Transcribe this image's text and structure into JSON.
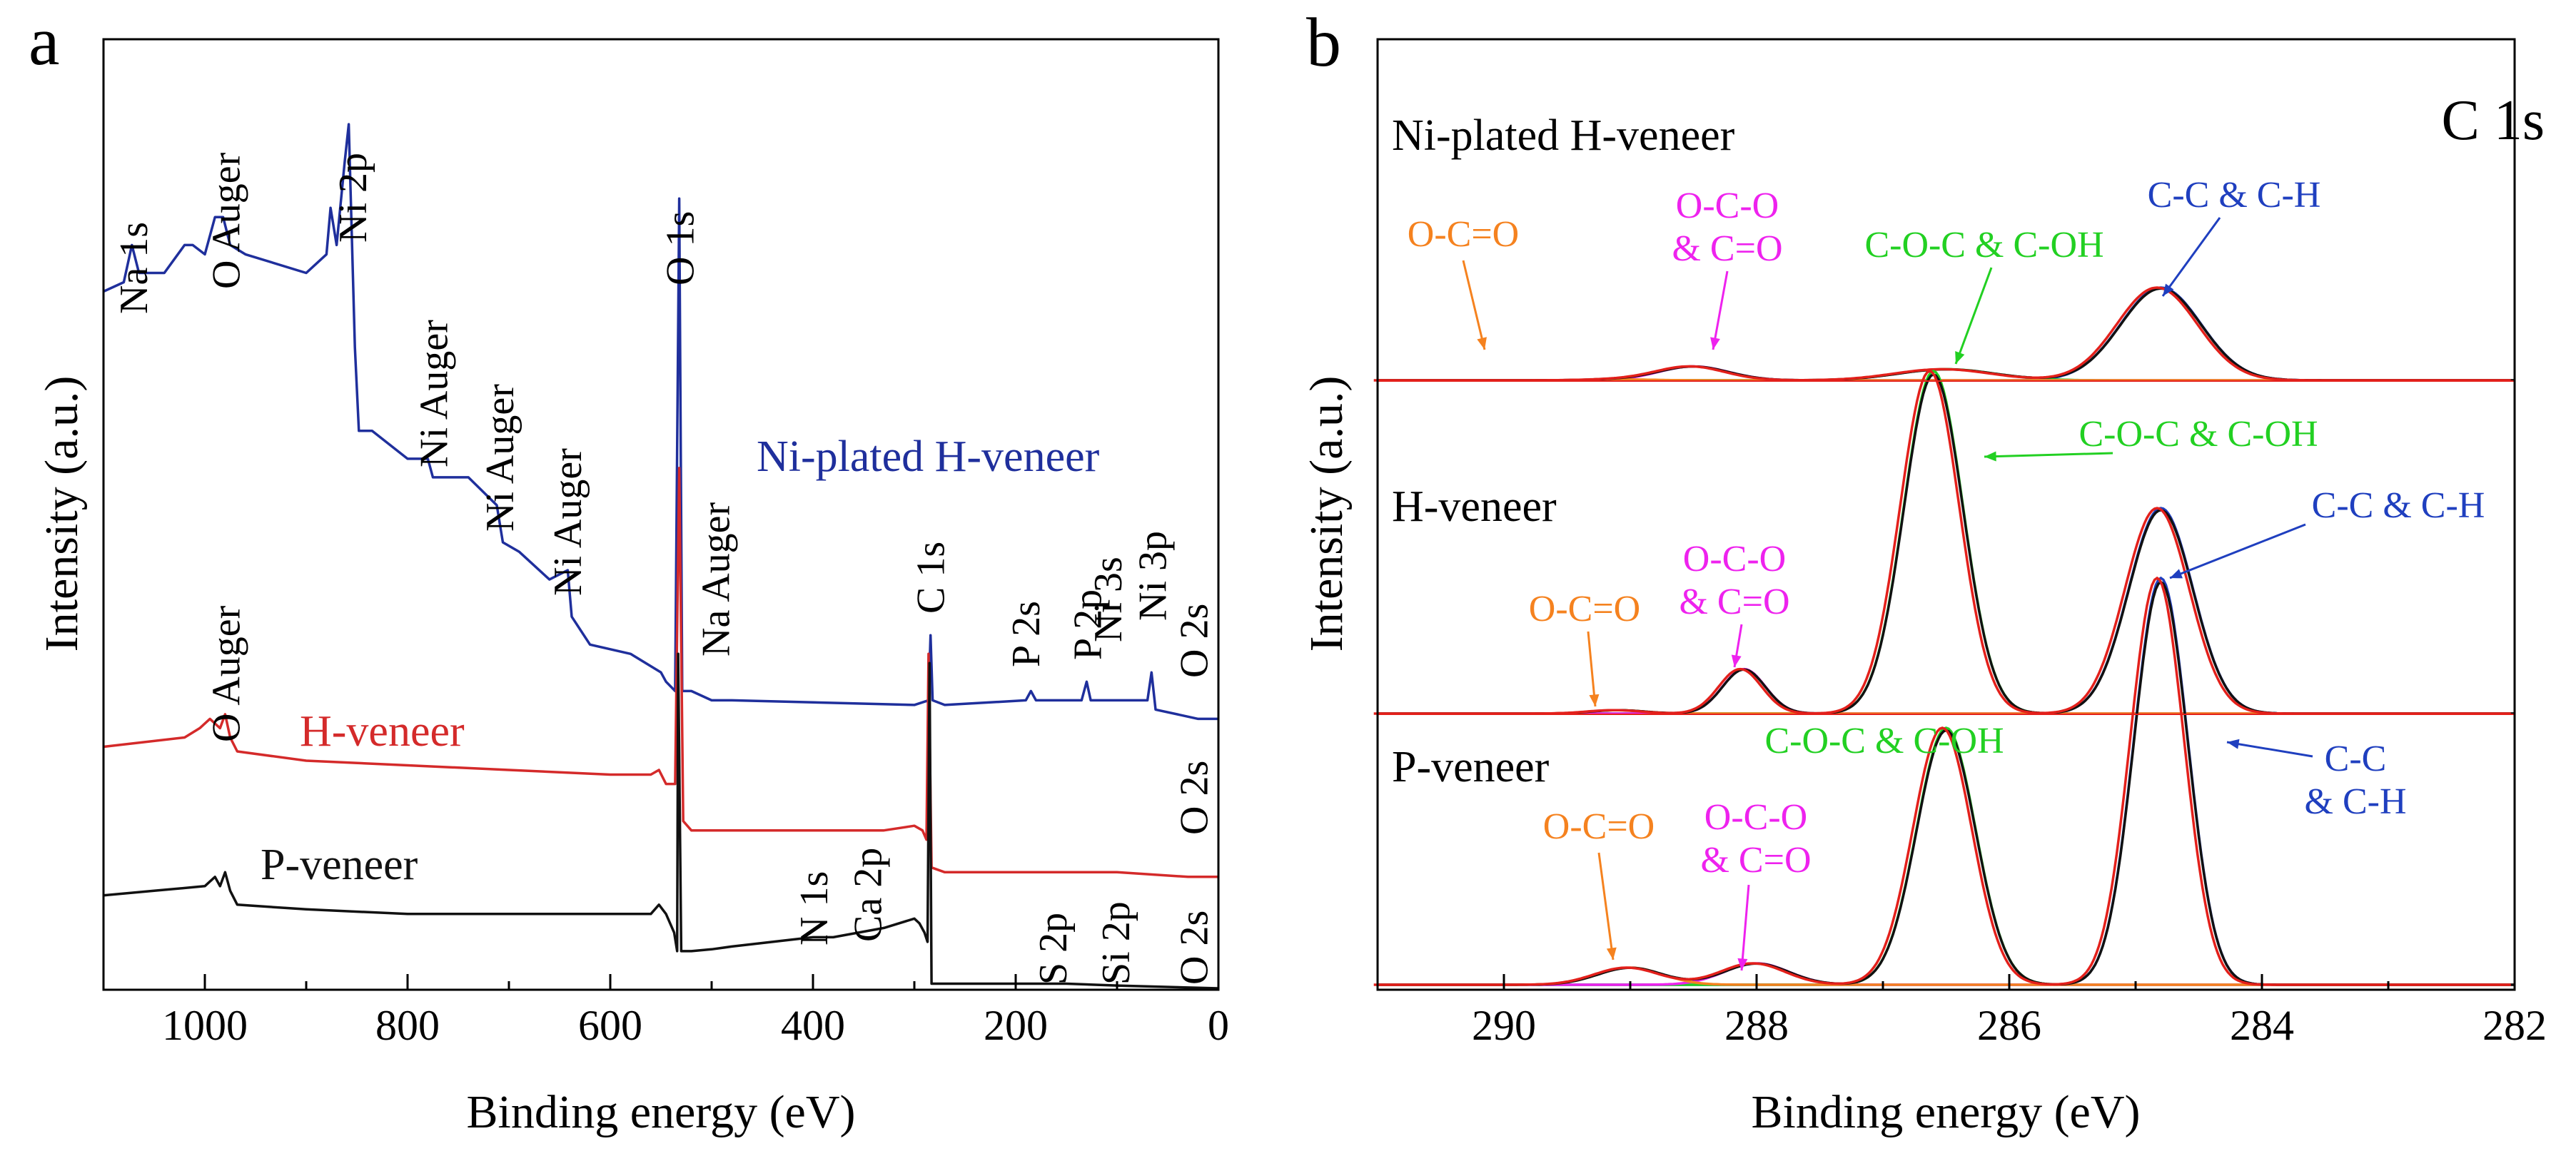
{
  "colors": {
    "ni_series": "#1f2f9c",
    "h_series": "#d42a2a",
    "p_series": "#111111",
    "fit_red": "#e3201b",
    "fit_blue": "#1f3fbf",
    "fit_green": "#22d022",
    "fit_magenta": "#ee22ee",
    "fit_orange": "#f5821f",
    "axis": "#000000"
  },
  "chart_data": [
    {
      "type": "line",
      "panel_label": "a",
      "xlabel": "Binding energy (eV)",
      "ylabel": "Intensity (a.u.)",
      "xlim": [
        1100,
        0
      ],
      "x_reversed": true,
      "xticks": [
        1000,
        800,
        600,
        400,
        200,
        0
      ],
      "ylim": [
        0,
        100
      ],
      "yticks_shown": false,
      "grid": false,
      "series": [
        {
          "name": "Ni-plated H-veneer",
          "color": "#1f2f9c",
          "points": [
            [
              1100,
              75
            ],
            [
              1080,
              76
            ],
            [
              1072,
              80
            ],
            [
              1065,
              77
            ],
            [
              1040,
              77
            ],
            [
              1020,
              80
            ],
            [
              1012,
              80
            ],
            [
              1000,
              79
            ],
            [
              990,
              83
            ],
            [
              982,
              83
            ],
            [
              975,
              80
            ],
            [
              960,
              79
            ],
            [
              900,
              77
            ],
            [
              880,
              79
            ],
            [
              876,
              84
            ],
            [
              870,
              80
            ],
            [
              862,
              89
            ],
            [
              858,
              93
            ],
            [
              855,
              81
            ],
            [
              852,
              69
            ],
            [
              848,
              60
            ],
            [
              835,
              60
            ],
            [
              800,
              57
            ],
            [
              780,
              57
            ],
            [
              775,
              55
            ],
            [
              740,
              55
            ],
            [
              712,
              52
            ],
            [
              706,
              48
            ],
            [
              690,
              47
            ],
            [
              660,
              44
            ],
            [
              642,
              45
            ],
            [
              638,
              40
            ],
            [
              620,
              37
            ],
            [
              580,
              36
            ],
            [
              550,
              34
            ],
            [
              545,
              33
            ],
            [
              536,
              32
            ],
            [
              532,
              85
            ],
            [
              529,
              32
            ],
            [
              520,
              32
            ],
            [
              500,
              31
            ],
            [
              480,
              31
            ],
            [
              300,
              30.5
            ],
            [
              286,
              31
            ],
            [
              284,
              38
            ],
            [
              282,
              31
            ],
            [
              270,
              30.5
            ],
            [
              190,
              31
            ],
            [
              185,
              32
            ],
            [
              180,
              31
            ],
            [
              135,
              31
            ],
            [
              130,
              33
            ],
            [
              126,
              31
            ],
            [
              70,
              31
            ],
            [
              66,
              34
            ],
            [
              62,
              30
            ],
            [
              20,
              29
            ],
            [
              0,
              29
            ]
          ]
        },
        {
          "name": "H-veneer",
          "color": "#d42a2a",
          "points": [
            [
              1100,
              26
            ],
            [
              1020,
              27
            ],
            [
              1005,
              28
            ],
            [
              995,
              29
            ],
            [
              985,
              28
            ],
            [
              980,
              29.5
            ],
            [
              975,
              27
            ],
            [
              968,
              25.5
            ],
            [
              900,
              24.5
            ],
            [
              800,
              24
            ],
            [
              700,
              23.5
            ],
            [
              600,
              23
            ],
            [
              560,
              23
            ],
            [
              552,
              23.5
            ],
            [
              545,
              22
            ],
            [
              536,
              22
            ],
            [
              532,
              56
            ],
            [
              528,
              18
            ],
            [
              520,
              17
            ],
            [
              480,
              17
            ],
            [
              400,
              17
            ],
            [
              330,
              17
            ],
            [
              300,
              17.5
            ],
            [
              292,
              17
            ],
            [
              288,
              16
            ],
            [
              286,
              36
            ],
            [
              283,
              13
            ],
            [
              270,
              12.5
            ],
            [
              100,
              12.5
            ],
            [
              30,
              12
            ],
            [
              0,
              12
            ]
          ]
        },
        {
          "name": "P-veneer",
          "color": "#111111",
          "points": [
            [
              1100,
              10
            ],
            [
              1050,
              10.5
            ],
            [
              1000,
              11
            ],
            [
              990,
              12
            ],
            [
              985,
              11
            ],
            [
              980,
              12.5
            ],
            [
              975,
              10.5
            ],
            [
              968,
              9
            ],
            [
              900,
              8.5
            ],
            [
              800,
              8
            ],
            [
              700,
              8
            ],
            [
              600,
              8
            ],
            [
              560,
              8
            ],
            [
              552,
              9
            ],
            [
              545,
              8
            ],
            [
              537,
              6
            ],
            [
              534,
              4
            ],
            [
              533,
              36
            ],
            [
              530,
              4
            ],
            [
              520,
              4
            ],
            [
              500,
              4.2
            ],
            [
              480,
              4.5
            ],
            [
              400,
              5.5
            ],
            [
              380,
              5.5
            ],
            [
              330,
              6.5
            ],
            [
              300,
              7.5
            ],
            [
              295,
              7
            ],
            [
              290,
              6
            ],
            [
              287,
              5
            ],
            [
              285,
              35
            ],
            [
              283,
              0.5
            ],
            [
              270,
              0.5
            ],
            [
              150,
              0.5
            ],
            [
              100,
              0.3
            ],
            [
              0,
              0
            ]
          ]
        }
      ],
      "annotations": [
        {
          "text": "Na 1s",
          "x": 1071
        },
        {
          "text": "O Auger",
          "x": 980
        },
        {
          "text": "Ni 2p",
          "x": 855
        },
        {
          "text": "Ni Auger",
          "x": 775
        },
        {
          "text": "Ni Auger",
          "x": 710
        },
        {
          "text": "Ni Auger",
          "x": 643
        },
        {
          "text": "O 1s",
          "x": 532
        },
        {
          "text": "Na Auger",
          "x": 497
        },
        {
          "text": "C 1s",
          "x": 285
        },
        {
          "text": "P 2s",
          "x": 191
        },
        {
          "text": "P 2p",
          "x": 130
        },
        {
          "text": "Ni 3s",
          "x": 110
        },
        {
          "text": "Ni 3p",
          "x": 66
        },
        {
          "text": "O 2s",
          "x": 25
        },
        {
          "text": "O Auger",
          "x": 980
        },
        {
          "text": "O 2s",
          "x": 25
        },
        {
          "text": "N 1s",
          "x": 400
        },
        {
          "text": "Ca 2p",
          "x": 347
        },
        {
          "text": "S 2p",
          "x": 164
        },
        {
          "text": "Si 2p",
          "x": 102
        },
        {
          "text": "O 2s",
          "x": 25
        }
      ],
      "series_labels": [
        "Ni-plated H-veneer",
        "H-veneer",
        "P-veneer"
      ]
    },
    {
      "type": "line",
      "panel_label": "b",
      "title": "C 1s",
      "xlabel": "Binding energy (eV)",
      "ylabel": "Intensity (a.u.)",
      "xlim": [
        291,
        282
      ],
      "x_reversed": true,
      "xticks": [
        290,
        288,
        286,
        284,
        282
      ],
      "yticks_shown": false,
      "grid": false,
      "panels": [
        {
          "name": "Ni-plated H-veneer",
          "baseline_offset": 2.3,
          "scale": 0.34,
          "components": [
            {
              "label": "C-C & C-H",
              "color": "#1f3fbf",
              "center": 284.8,
              "height": 1.0,
              "width": 0.75
            },
            {
              "label": "C-O-C & C-OH",
              "color": "#22d022",
              "center": 286.5,
              "height": 0.12,
              "width": 0.9
            },
            {
              "label": "O-C-O & C=O",
              "color": "#ee22ee",
              "center": 288.5,
              "height": 0.15,
              "width": 0.65
            },
            {
              "label": "O-C=O",
              "color": "#f5821f",
              "center": 289.1,
              "height": 0.01,
              "width": 0.6
            }
          ]
        },
        {
          "name": "H-veneer",
          "baseline_offset": 1.2,
          "scale": 0.9,
          "components": [
            {
              "label": "C-C & C-H",
              "color": "#1f3fbf",
              "center": 284.8,
              "height": 0.6,
              "width": 0.6
            },
            {
              "label": "C-O-C & C-OH",
              "color": "#22d022",
              "center": 286.6,
              "height": 1.0,
              "width": 0.55
            },
            {
              "label": "O-C-O & C=O",
              "color": "#ee22ee",
              "center": 288.1,
              "height": 0.13,
              "width": 0.4
            },
            {
              "label": "O-C=O",
              "color": "#f5821f",
              "center": 289.1,
              "height": 0.01,
              "width": 0.5
            }
          ]
        },
        {
          "name": "P-veneer",
          "baseline_offset": 0.0,
          "scale": 1.0,
          "components": [
            {
              "label": "C-C & C-H",
              "color": "#1f3fbf",
              "center": 284.8,
              "height": 0.95,
              "width": 0.5
            },
            {
              "label": "C-O-C & C-OH",
              "color": "#22d022",
              "center": 286.5,
              "height": 0.6,
              "width": 0.55
            },
            {
              "label": "O-C-O & C=O",
              "color": "#ee22ee",
              "center": 288.0,
              "height": 0.05,
              "width": 0.6
            },
            {
              "label": "O-C=O",
              "color": "#f5821f",
              "center": 289.0,
              "height": 0.04,
              "width": 0.6
            }
          ]
        }
      ],
      "labels": {
        "title": "C 1s",
        "ni_name": "Ni-plated H-veneer",
        "h_name": "H-veneer",
        "p_name": "P-veneer",
        "occ": "O-C=O",
        "oco": "O-C-O",
        "co": "& C=O",
        "coc": "C-O-C & C-OH",
        "cc": "C-C & C-H",
        "cc1": "C-C",
        "cc2": "& C-H"
      }
    }
  ]
}
